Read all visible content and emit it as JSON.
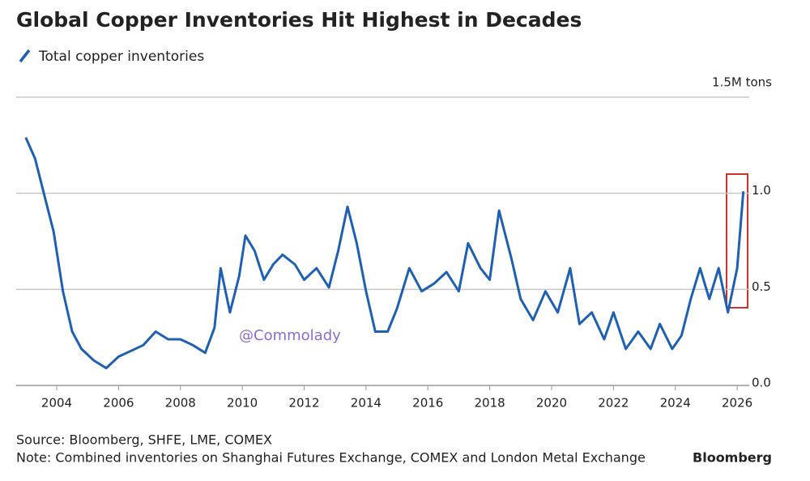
{
  "chart_data": {
    "type": "line",
    "title": "Global Copper Inventories Hit Highest in Decades",
    "series": [
      {
        "name": "Total copper inventories",
        "color": "#1f5fb4",
        "x": [
          2003.0,
          2003.3,
          2003.6,
          2003.9,
          2004.2,
          2004.5,
          2004.8,
          2005.2,
          2005.6,
          2006.0,
          2006.4,
          2006.8,
          2007.2,
          2007.6,
          2008.0,
          2008.4,
          2008.8,
          2009.1,
          2009.3,
          2009.6,
          2009.9,
          2010.1,
          2010.4,
          2010.7,
          2011.0,
          2011.3,
          2011.7,
          2012.0,
          2012.4,
          2012.8,
          2013.1,
          2013.4,
          2013.7,
          2014.0,
          2014.3,
          2014.7,
          2015.0,
          2015.4,
          2015.8,
          2016.2,
          2016.6,
          2017.0,
          2017.3,
          2017.7,
          2018.0,
          2018.3,
          2018.7,
          2019.0,
          2019.4,
          2019.8,
          2020.2,
          2020.6,
          2020.9,
          2021.3,
          2021.7,
          2022.0,
          2022.4,
          2022.8,
          2023.2,
          2023.5,
          2023.9,
          2024.2,
          2024.5,
          2024.8,
          2025.1,
          2025.4,
          2025.7,
          2026.0,
          2026.2
        ],
        "values": [
          1.29,
          1.18,
          0.99,
          0.8,
          0.49,
          0.28,
          0.19,
          0.13,
          0.09,
          0.15,
          0.18,
          0.21,
          0.28,
          0.24,
          0.24,
          0.21,
          0.17,
          0.3,
          0.61,
          0.38,
          0.57,
          0.78,
          0.7,
          0.55,
          0.63,
          0.68,
          0.63,
          0.55,
          0.61,
          0.51,
          0.7,
          0.93,
          0.74,
          0.49,
          0.28,
          0.28,
          0.4,
          0.61,
          0.49,
          0.53,
          0.59,
          0.49,
          0.74,
          0.61,
          0.55,
          0.91,
          0.66,
          0.45,
          0.34,
          0.49,
          0.38,
          0.61,
          0.32,
          0.38,
          0.24,
          0.38,
          0.19,
          0.28,
          0.19,
          0.32,
          0.19,
          0.26,
          0.45,
          0.61,
          0.45,
          0.61,
          0.38,
          0.61,
          1.01
        ]
      }
    ],
    "xlim": [
      2002.69,
      2026.39
    ],
    "xticks": [
      2004,
      2006,
      2008,
      2010,
      2012,
      2014,
      2016,
      2018,
      2020,
      2022,
      2024,
      2026
    ],
    "ylim": [
      0,
      1.5
    ],
    "yticks": [
      {
        "value": 0,
        "label": "0.0"
      },
      {
        "value": 0.5,
        "label": "0.5"
      },
      {
        "value": 1,
        "label": "1.0"
      },
      {
        "value": 1.5,
        "label": "1.5M tons"
      }
    ],
    "grid": true,
    "annotation": "@Commolady",
    "source": "Source: Bloomberg, SHFE, LME, COMEX",
    "note": "Note: Combined inventories on Shanghai Futures Exchange, COMEX and London Metal Exchange",
    "brand": "Bloomberg"
  }
}
